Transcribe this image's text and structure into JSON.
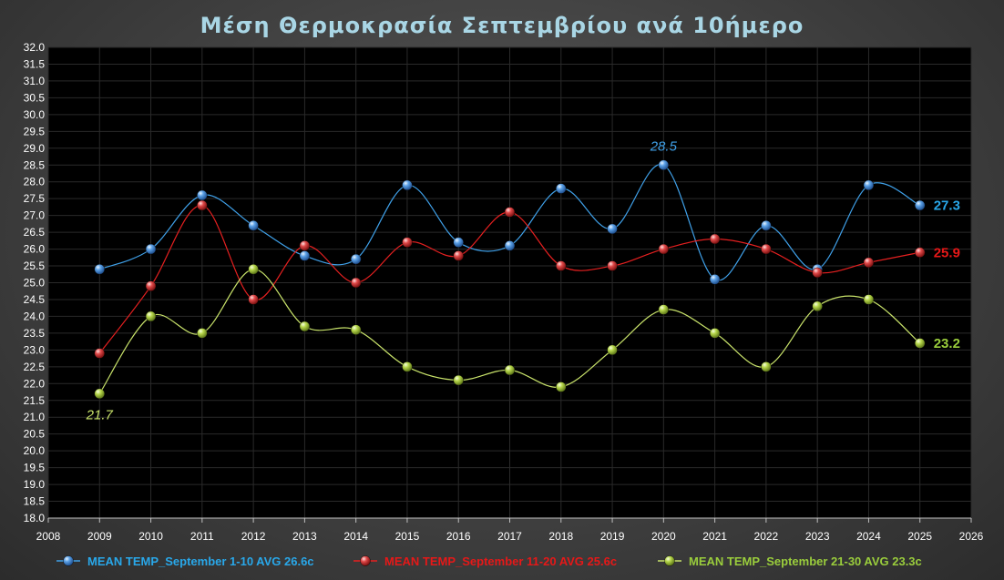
{
  "chart_data": {
    "type": "line",
    "title": "Μέση Θερμοκρασία Σεπτεμβρίου ανά 10ήμερο",
    "xlim": [
      2008,
      2026
    ],
    "ylim": [
      18.0,
      32.0
    ],
    "x_ticks": [
      "2008",
      "2009",
      "2010",
      "2011",
      "2012",
      "2013",
      "2014",
      "2015",
      "2016",
      "2017",
      "2018",
      "2019",
      "2020",
      "2021",
      "2022",
      "2023",
      "2024",
      "2025",
      "2026"
    ],
    "y_ticks": [
      "18.0",
      "18.5",
      "19.0",
      "19.5",
      "20.0",
      "20.5",
      "21.0",
      "21.5",
      "22.0",
      "22.5",
      "23.0",
      "23.5",
      "24.0",
      "24.5",
      "25.0",
      "25.5",
      "26.0",
      "26.5",
      "27.0",
      "27.5",
      "28.0",
      "28.5",
      "29.0",
      "29.5",
      "30.0",
      "30.5",
      "31.0",
      "31.5",
      "32.0"
    ],
    "grid": true,
    "legend_position": "bottom",
    "series": [
      {
        "name": "MEAN TEMP_September 1-10 AVG 26.6c",
        "color": "#3fa0e8",
        "legend_color": "#29a8ea",
        "x": [
          2009,
          2010,
          2011,
          2012,
          2013,
          2014,
          2015,
          2016,
          2017,
          2018,
          2019,
          2020,
          2021,
          2022,
          2023,
          2024,
          2025
        ],
        "values": [
          25.4,
          26.0,
          27.6,
          26.7,
          25.8,
          25.7,
          27.9,
          26.2,
          26.1,
          27.8,
          26.6,
          28.5,
          25.1,
          26.7,
          25.4,
          27.9,
          27.3
        ]
      },
      {
        "name": "MEAN TEMP_September 11-20 AVG 25.6c",
        "color": "#e62020",
        "legend_color": "#e61818",
        "x": [
          2009,
          2010,
          2011,
          2012,
          2013,
          2014,
          2015,
          2016,
          2017,
          2018,
          2019,
          2020,
          2021,
          2022,
          2023,
          2024,
          2025
        ],
        "values": [
          22.9,
          24.9,
          27.3,
          24.5,
          26.1,
          25.0,
          26.2,
          25.8,
          27.1,
          25.5,
          25.5,
          26.0,
          26.3,
          26.0,
          25.3,
          25.6,
          25.9
        ]
      },
      {
        "name": "MEAN TEMP_September 21-30 AVG 23.3c",
        "color": "#c8e26a",
        "legend_color": "#9acd3c",
        "x": [
          2009,
          2010,
          2011,
          2012,
          2013,
          2014,
          2015,
          2016,
          2017,
          2018,
          2019,
          2020,
          2021,
          2022,
          2023,
          2024,
          2025
        ],
        "values": [
          21.7,
          24.0,
          23.5,
          25.4,
          23.7,
          23.6,
          22.5,
          22.1,
          22.4,
          21.9,
          23.0,
          24.2,
          23.5,
          22.5,
          24.3,
          24.5,
          23.2
        ]
      }
    ],
    "annotations": [
      {
        "text": "28.5",
        "series": 0,
        "x": 2020,
        "color": "#3fa0e8",
        "italic": true,
        "bold": false,
        "where": "above"
      },
      {
        "text": "21.7",
        "series": 2,
        "x": 2009,
        "color": "#c8e26a",
        "italic": true,
        "bold": false,
        "where": "below"
      },
      {
        "text": "27.3",
        "series": 0,
        "x": 2025,
        "color": "#29a8ea",
        "italic": false,
        "bold": true,
        "where": "right"
      },
      {
        "text": "25.9",
        "series": 1,
        "x": 2025,
        "color": "#e61818",
        "italic": false,
        "bold": true,
        "where": "right"
      },
      {
        "text": "23.2",
        "series": 2,
        "x": 2025,
        "color": "#9acd3c",
        "italic": false,
        "bold": true,
        "where": "right"
      }
    ]
  }
}
